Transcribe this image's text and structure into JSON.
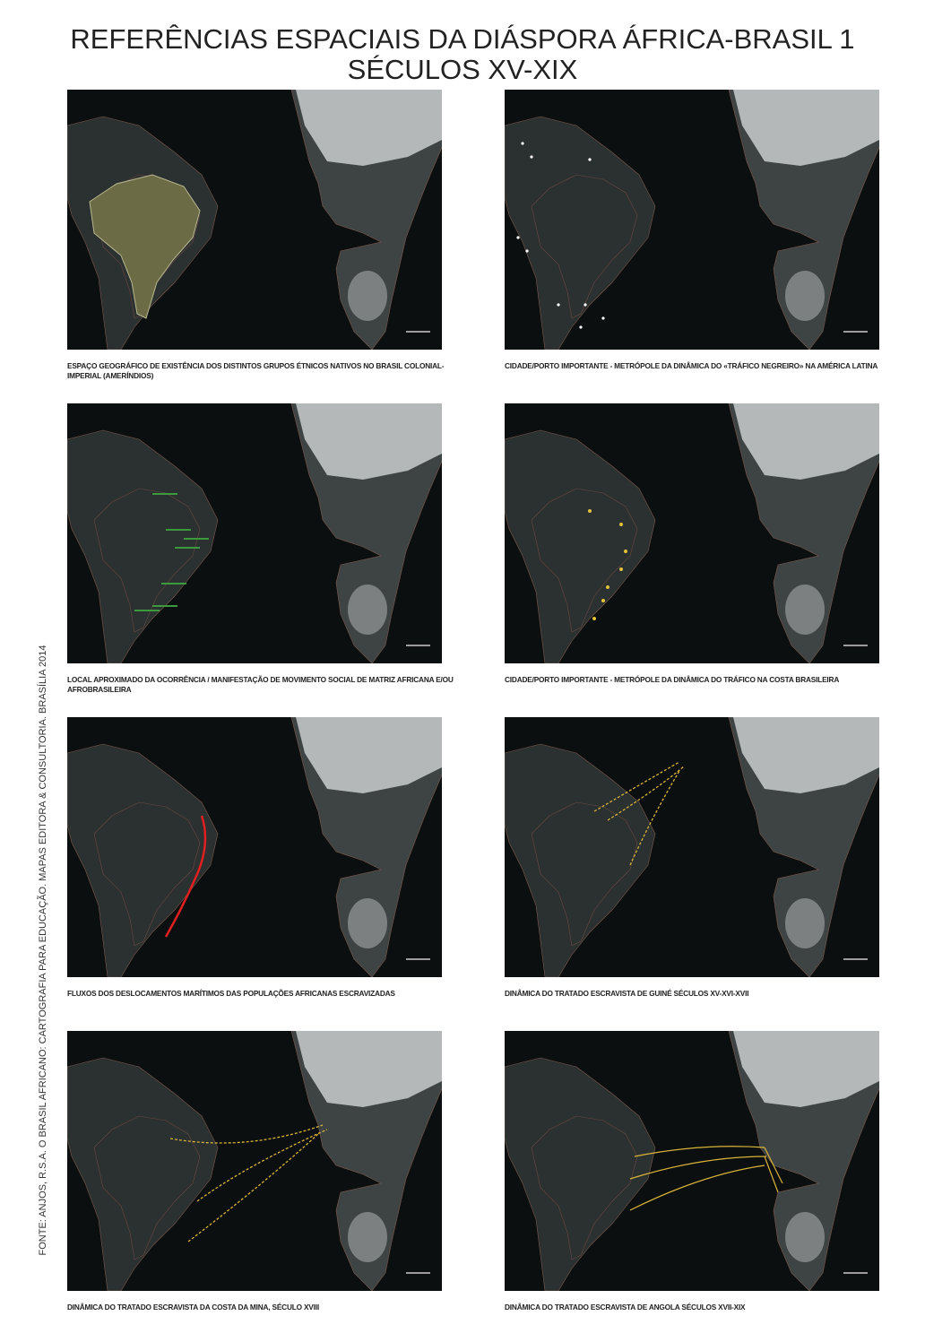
{
  "header": {
    "title_lines": [
      "REFERÊNCIAS ESPACIAIS DA DIÁSPORA ÁFRICA-BRASIL 1",
      "SÉCULOS XV-XIX"
    ]
  },
  "source": "FONTE: ANJOS, R.S.A. O BRASIL AFRICANO: CARTOGRAFIA PARA EDUCAÇÃO. MAPAS EDITORA & CONSULTORIA. BRASÍLIA 2014",
  "panels": [
    {
      "caption": "ESPAÇO GEOGRÁFICO DE EXISTÊNCIA DOS DISTINTOS GRUPOS ÉTNICOS NATIVOS NO BRASIL COLONIAL-IMPERIAL (AMERÍNDIOS)"
    },
    {
      "caption": "CIDADE/PORTO IMPORTANTE - METRÓPOLE DA DINÂMICA DO «TRÁFICO NEGREIRO» NA AMÉRICA LATINA"
    },
    {
      "caption": "LOCAL APROXIMADO DA OCORRÊNCIA / MANIFESTAÇÃO DE MOVIMENTO SOCIAL DE MATRIZ AFRICANA E/OU AFROBRASILEIRA"
    },
    {
      "caption": "CIDADE/PORTO IMPORTANTE - METRÓPOLE DA DINÂMICA DO TRÁFICO NA COSTA BRASILEIRA"
    },
    {
      "caption": "FLUXOS DOS DESLOCAMENTOS MARÍTIMOS DAS POPULAÇÕES AFRICANAS ESCRAVIZADAS"
    },
    {
      "caption": "DINÂMICA DO TRATADO ESCRAVISTA DE GUINÉ SÉCULOS XV-XVI-XVII"
    },
    {
      "caption": "DINÂMICA DO TRATADO ESCRAVISTA DA COSTA DA MINA, SÉCULO XVIII"
    },
    {
      "caption": "DINÂMICA DO TRATADO ESCRAVISTA DE ANGOLA SÉCULOS XVII-XIX"
    }
  ]
}
